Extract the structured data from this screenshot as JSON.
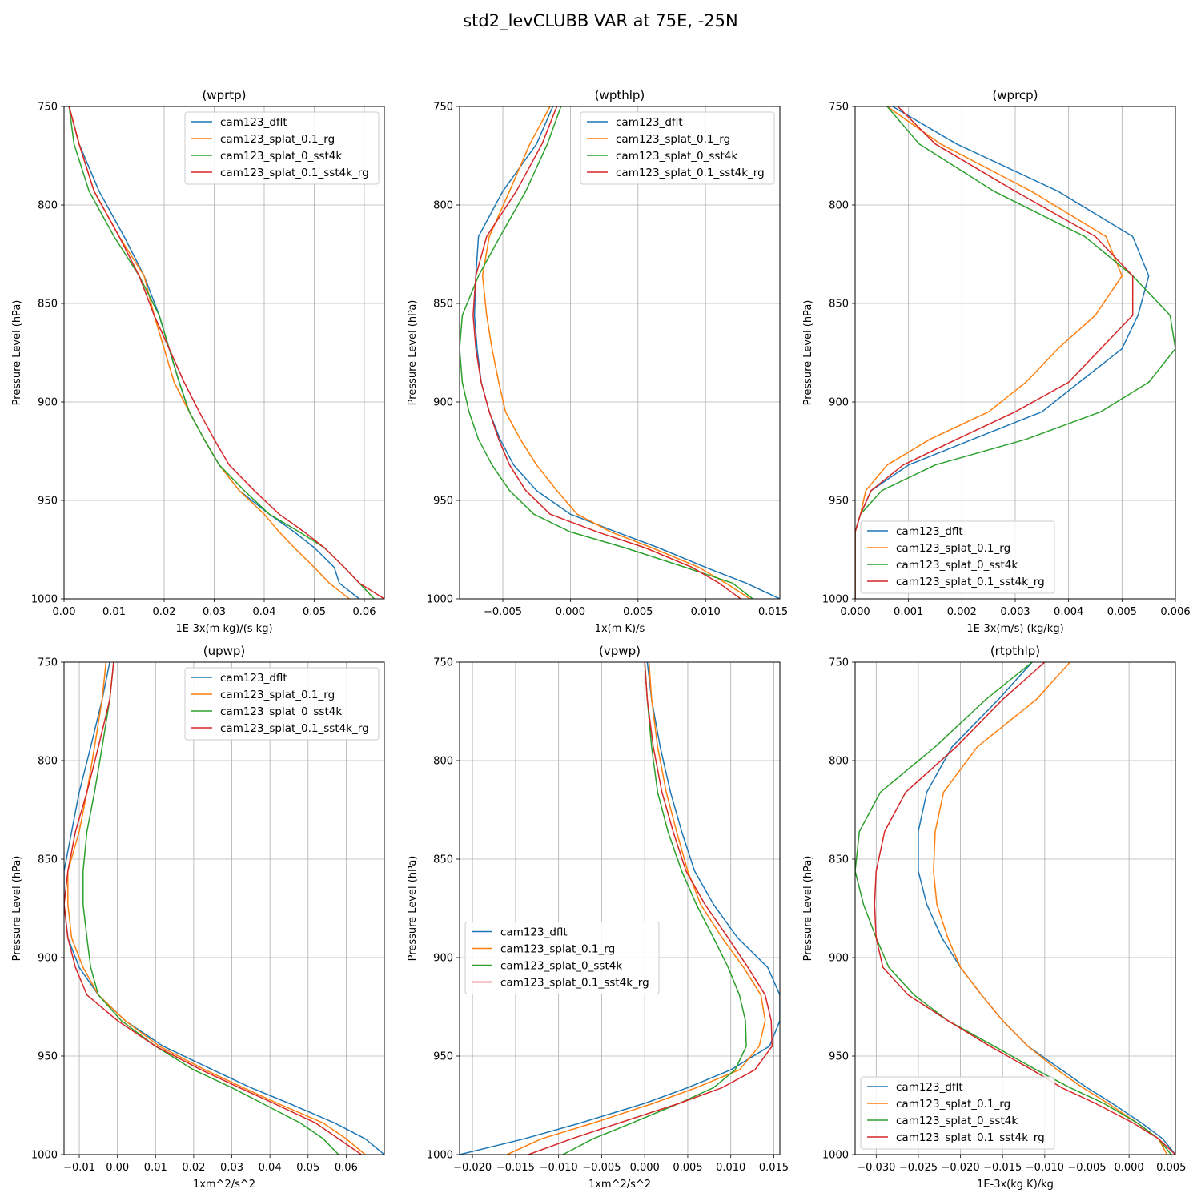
{
  "figure": {
    "title": "std2_levCLUBB VAR at 75E, -25N"
  },
  "series_colors": {
    "cam123_dflt": "#1f77b4",
    "cam123_splat_0.1_rg": "#ff7f0e",
    "cam123_splat_0_sst4k": "#2ca02c",
    "cam123_splat_0.1_sst4k_rg": "#d62728"
  },
  "chart_data": [
    {
      "type": "line",
      "title": "(wprtp)",
      "xlabel": "1E-3x(m kg)/(s kg)",
      "ylabel": "Pressure Level (hPa)",
      "xlim": [
        0.0,
        0.064
      ],
      "ylim": [
        1000,
        750
      ],
      "xticks": [
        0.0,
        0.01,
        0.02,
        0.03,
        0.04,
        0.05,
        0.06
      ],
      "xtick_labels": [
        "0.00",
        "0.01",
        "0.02",
        "0.03",
        "0.04",
        "0.05",
        "0.06"
      ],
      "yticks": [
        750,
        800,
        850,
        900,
        950,
        1000
      ],
      "grid": true,
      "legend": "upper right",
      "levels": [
        750,
        769,
        793,
        816,
        836,
        856,
        873,
        890,
        905,
        919,
        932,
        945,
        957,
        966,
        974,
        984,
        992,
        1000
      ],
      "series": [
        {
          "name": "cam123_dflt",
          "x": [
            0.001,
            0.003,
            0.007,
            0.012,
            0.016,
            0.019,
            0.021,
            0.023,
            0.025,
            0.028,
            0.031,
            0.035,
            0.041,
            0.046,
            0.05,
            0.054,
            0.055,
            0.059
          ]
        },
        {
          "name": "cam123_splat_0.1_rg",
          "x": [
            0.001,
            0.003,
            0.006,
            0.011,
            0.016,
            0.018,
            0.02,
            0.022,
            0.025,
            0.028,
            0.031,
            0.035,
            0.04,
            0.043,
            0.046,
            0.05,
            0.053,
            0.057
          ]
        },
        {
          "name": "cam123_splat_0_sst4k",
          "x": [
            0.001,
            0.002,
            0.005,
            0.01,
            0.015,
            0.019,
            0.021,
            0.023,
            0.025,
            0.028,
            0.031,
            0.036,
            0.041,
            0.047,
            0.052,
            0.056,
            0.059,
            0.062
          ]
        },
        {
          "name": "cam123_splat_0.1_sst4k_rg",
          "x": [
            0.001,
            0.003,
            0.006,
            0.011,
            0.015,
            0.018,
            0.021,
            0.024,
            0.027,
            0.03,
            0.033,
            0.038,
            0.043,
            0.048,
            0.052,
            0.056,
            0.059,
            0.064
          ]
        }
      ]
    },
    {
      "type": "line",
      "title": "(wpthlp)",
      "xlabel": "1x(m K)/s",
      "ylabel": "Pressure Level (hPa)",
      "xlim": [
        -0.0082,
        0.0155
      ],
      "ylim": [
        1000,
        750
      ],
      "xticks": [
        -0.005,
        0.0,
        0.005,
        0.01,
        0.015
      ],
      "xtick_labels": [
        "−0.005",
        "0.000",
        "0.005",
        "0.010",
        "0.015"
      ],
      "yticks": [
        750,
        800,
        850,
        900,
        950,
        1000
      ],
      "grid": true,
      "legend": "upper right",
      "levels": [
        750,
        769,
        793,
        816,
        836,
        856,
        873,
        890,
        905,
        919,
        932,
        945,
        957,
        966,
        974,
        984,
        992,
        1000
      ],
      "series": [
        {
          "name": "cam123_dflt",
          "x": [
            -0.0013,
            -0.0025,
            -0.005,
            -0.0068,
            -0.007,
            -0.0071,
            -0.0069,
            -0.0066,
            -0.006,
            -0.0052,
            -0.0042,
            -0.0025,
            0.0,
            0.0034,
            0.0065,
            0.01,
            0.013,
            0.0155
          ]
        },
        {
          "name": "cam123_splat_0.1_rg",
          "x": [
            -0.0015,
            -0.003,
            -0.0045,
            -0.006,
            -0.0065,
            -0.0062,
            -0.0058,
            -0.0053,
            -0.0048,
            -0.0037,
            -0.0025,
            -0.001,
            0.0005,
            0.003,
            0.006,
            0.0095,
            0.0115,
            0.0133
          ]
        },
        {
          "name": "cam123_splat_0_sst4k",
          "x": [
            -0.0007,
            -0.0017,
            -0.0033,
            -0.0052,
            -0.0068,
            -0.008,
            -0.0082,
            -0.008,
            -0.0075,
            -0.0068,
            -0.0058,
            -0.0045,
            -0.0027,
            0.0,
            0.004,
            0.0085,
            0.012,
            0.0135
          ]
        },
        {
          "name": "cam123_splat_0.1_sst4k_rg",
          "x": [
            -0.001,
            -0.0021,
            -0.004,
            -0.0062,
            -0.007,
            -0.0072,
            -0.007,
            -0.0066,
            -0.006,
            -0.0053,
            -0.0045,
            -0.0033,
            -0.0015,
            0.002,
            0.0055,
            0.009,
            0.011,
            0.0126
          ]
        }
      ]
    },
    {
      "type": "line",
      "title": "(wprcp)",
      "xlabel": "1E-3x(m/s) (kg/kg)",
      "ylabel": "Pressure Level (hPa)",
      "xlim": [
        0.0,
        0.006
      ],
      "ylim": [
        1000,
        750
      ],
      "xticks": [
        0.0,
        0.001,
        0.002,
        0.003,
        0.004,
        0.005,
        0.006
      ],
      "xtick_labels": [
        "0.000",
        "0.001",
        "0.002",
        "0.003",
        "0.004",
        "0.005",
        "0.006"
      ],
      "yticks": [
        750,
        800,
        850,
        900,
        950,
        1000
      ],
      "grid": true,
      "legend": "lower left",
      "levels": [
        750,
        769,
        793,
        816,
        836,
        856,
        873,
        890,
        905,
        919,
        932,
        945,
        957,
        966,
        974,
        984,
        992,
        1000
      ],
      "series": [
        {
          "name": "cam123_dflt",
          "x": [
            0.0007,
            0.0019,
            0.0038,
            0.0052,
            0.0055,
            0.0053,
            0.005,
            0.0042,
            0.0035,
            0.0022,
            0.001,
            0.0003,
            0.0001,
            0.0,
            0.0,
            0.0,
            0.0,
            0.0
          ]
        },
        {
          "name": "cam123_splat_0.1_rg",
          "x": [
            0.0006,
            0.0016,
            0.0033,
            0.0047,
            0.005,
            0.0045,
            0.0038,
            0.0032,
            0.0025,
            0.0014,
            0.0006,
            0.0002,
            0.0001,
            0.0,
            0.0,
            0.0,
            0.0,
            0.0
          ]
        },
        {
          "name": "cam123_splat_0_sst4k",
          "x": [
            0.0006,
            0.0012,
            0.0026,
            0.0043,
            0.0052,
            0.0059,
            0.006,
            0.0055,
            0.0046,
            0.0032,
            0.0015,
            0.0005,
            0.0001,
            0.0,
            0.0,
            0.0,
            0.0,
            0.0
          ]
        },
        {
          "name": "cam123_splat_0.1_sst4k_rg",
          "x": [
            0.0008,
            0.0015,
            0.003,
            0.0045,
            0.0052,
            0.0052,
            0.0046,
            0.004,
            0.003,
            0.0019,
            0.0009,
            0.0003,
            0.0001,
            0.0,
            0.0,
            0.0,
            0.0,
            0.0
          ]
        }
      ]
    },
    {
      "type": "line",
      "title": "(upwp)",
      "xlabel": "1xm^2/s^2",
      "ylabel": "Pressure Level (hPa)",
      "xlim": [
        -0.014,
        0.07
      ],
      "ylim": [
        1000,
        750
      ],
      "xticks": [
        -0.01,
        0.0,
        0.01,
        0.02,
        0.03,
        0.04,
        0.05,
        0.06
      ],
      "xtick_labels": [
        "−0.01",
        "0.00",
        "0.01",
        "0.02",
        "0.03",
        "0.04",
        "0.05",
        "0.06"
      ],
      "yticks": [
        750,
        800,
        850,
        900,
        950,
        1000
      ],
      "grid": true,
      "legend": "upper right",
      "levels": [
        750,
        769,
        793,
        816,
        836,
        856,
        873,
        890,
        905,
        919,
        932,
        945,
        957,
        966,
        974,
        984,
        992,
        1000
      ],
      "series": [
        {
          "name": "cam123_dflt",
          "x": [
            -0.002,
            -0.004,
            -0.007,
            -0.01,
            -0.012,
            -0.014,
            -0.014,
            -0.013,
            -0.01,
            -0.005,
            0.002,
            0.012,
            0.025,
            0.035,
            0.045,
            0.057,
            0.065,
            0.07
          ]
        },
        {
          "name": "cam123_splat_0.1_rg",
          "x": [
            -0.003,
            -0.004,
            -0.006,
            -0.008,
            -0.01,
            -0.013,
            -0.013,
            -0.012,
            -0.009,
            -0.005,
            0.002,
            0.011,
            0.023,
            0.033,
            0.042,
            0.054,
            0.06,
            0.065
          ]
        },
        {
          "name": "cam123_splat_0_sst4k",
          "x": [
            -0.001,
            -0.002,
            -0.004,
            -0.006,
            -0.008,
            -0.009,
            -0.009,
            -0.008,
            -0.007,
            -0.005,
            0.001,
            0.01,
            0.02,
            0.03,
            0.038,
            0.048,
            0.054,
            0.058
          ]
        },
        {
          "name": "cam123_splat_0.1_sst4k_rg",
          "x": [
            -0.001,
            -0.002,
            -0.005,
            -0.008,
            -0.011,
            -0.013,
            -0.014,
            -0.013,
            -0.011,
            -0.008,
            0.0,
            0.01,
            0.022,
            0.032,
            0.041,
            0.052,
            0.058,
            0.064
          ]
        }
      ]
    },
    {
      "type": "line",
      "title": "(vpwp)",
      "xlabel": "1xm^2/s^2",
      "ylabel": "Pressure Level (hPa)",
      "xlim": [
        -0.0215,
        0.0157
      ],
      "ylim": [
        1000,
        750
      ],
      "xticks": [
        -0.02,
        -0.015,
        -0.01,
        -0.005,
        0.0,
        0.005,
        0.01,
        0.015
      ],
      "xtick_labels": [
        "−0.020",
        "−0.015",
        "−0.010",
        "−0.005",
        "0.000",
        "0.005",
        "0.010",
        "0.015"
      ],
      "yticks": [
        750,
        800,
        850,
        900,
        950,
        1000
      ],
      "grid": true,
      "legend": "center left",
      "levels": [
        750,
        769,
        793,
        816,
        836,
        856,
        873,
        890,
        905,
        919,
        932,
        945,
        957,
        966,
        974,
        984,
        992,
        1000
      ],
      "series": [
        {
          "name": "cam123_dflt",
          "x": [
            0.0003,
            0.0008,
            0.0018,
            0.003,
            0.0043,
            0.0058,
            0.008,
            0.0108,
            0.0143,
            0.0157,
            0.0157,
            0.0145,
            0.01,
            0.005,
            0.0,
            -0.0075,
            -0.014,
            -0.0215
          ]
        },
        {
          "name": "cam123_splat_0.1_rg",
          "x": [
            0.0005,
            0.0008,
            0.0015,
            0.0025,
            0.0037,
            0.005,
            0.0065,
            0.009,
            0.0115,
            0.0135,
            0.014,
            0.0133,
            0.011,
            0.006,
            0.001,
            -0.006,
            -0.012,
            -0.016
          ]
        },
        {
          "name": "cam123_splat_0_sst4k",
          "x": [
            0.0,
            0.0003,
            0.0008,
            0.0015,
            0.0027,
            0.0043,
            0.006,
            0.008,
            0.0097,
            0.011,
            0.0117,
            0.0118,
            0.0105,
            0.008,
            0.004,
            -0.0015,
            -0.006,
            -0.0095
          ]
        },
        {
          "name": "cam123_splat_0.1_sst4k_rg",
          "x": [
            0.0,
            0.0003,
            0.001,
            0.002,
            0.0033,
            0.0048,
            0.007,
            0.0097,
            0.012,
            0.014,
            0.0147,
            0.0148,
            0.0128,
            0.009,
            0.004,
            -0.003,
            -0.0085,
            -0.0135
          ]
        }
      ]
    },
    {
      "type": "line",
      "title": "(rtpthlp)",
      "xlabel": "1E-3x(kg K)/kg",
      "ylabel": "Pressure Level (hPa)",
      "xlim": [
        -0.0325,
        0.0055
      ],
      "ylim": [
        1000,
        750
      ],
      "xticks": [
        -0.03,
        -0.025,
        -0.02,
        -0.015,
        -0.01,
        -0.005,
        0.0,
        0.005
      ],
      "xtick_labels": [
        "−0.030",
        "−0.025",
        "−0.020",
        "−0.015",
        "−0.010",
        "−0.005",
        "0.000",
        "0.005"
      ],
      "yticks": [
        750,
        800,
        850,
        900,
        950,
        1000
      ],
      "grid": true,
      "legend": "lower left",
      "levels": [
        750,
        769,
        793,
        816,
        836,
        856,
        873,
        890,
        905,
        919,
        932,
        945,
        957,
        966,
        974,
        984,
        992,
        1000
      ],
      "series": [
        {
          "name": "cam123_dflt",
          "x": [
            -0.0115,
            -0.0155,
            -0.021,
            -0.024,
            -0.025,
            -0.025,
            -0.024,
            -0.0222,
            -0.02,
            -0.0175,
            -0.015,
            -0.012,
            -0.008,
            -0.005,
            -0.002,
            0.0015,
            0.004,
            0.0055
          ]
        },
        {
          "name": "cam123_splat_0.1_rg",
          "x": [
            -0.007,
            -0.011,
            -0.018,
            -0.022,
            -0.023,
            -0.0232,
            -0.0228,
            -0.0215,
            -0.02,
            -0.0175,
            -0.015,
            -0.012,
            -0.0085,
            -0.0055,
            -0.0025,
            0.001,
            0.0035,
            0.0045
          ]
        },
        {
          "name": "cam123_splat_0_sst4k",
          "x": [
            -0.0115,
            -0.017,
            -0.023,
            -0.0295,
            -0.032,
            -0.0325,
            -0.0315,
            -0.03,
            -0.0285,
            -0.0255,
            -0.0215,
            -0.016,
            -0.011,
            -0.007,
            -0.003,
            0.001,
            0.0035,
            0.005
          ]
        },
        {
          "name": "cam123_splat_0.1_sst4k_rg",
          "x": [
            -0.01,
            -0.015,
            -0.0205,
            -0.0265,
            -0.029,
            -0.03,
            -0.0302,
            -0.03,
            -0.0292,
            -0.0262,
            -0.0215,
            -0.0165,
            -0.0115,
            -0.008,
            -0.004,
            0.0005,
            0.0035,
            0.0055
          ]
        }
      ]
    }
  ]
}
